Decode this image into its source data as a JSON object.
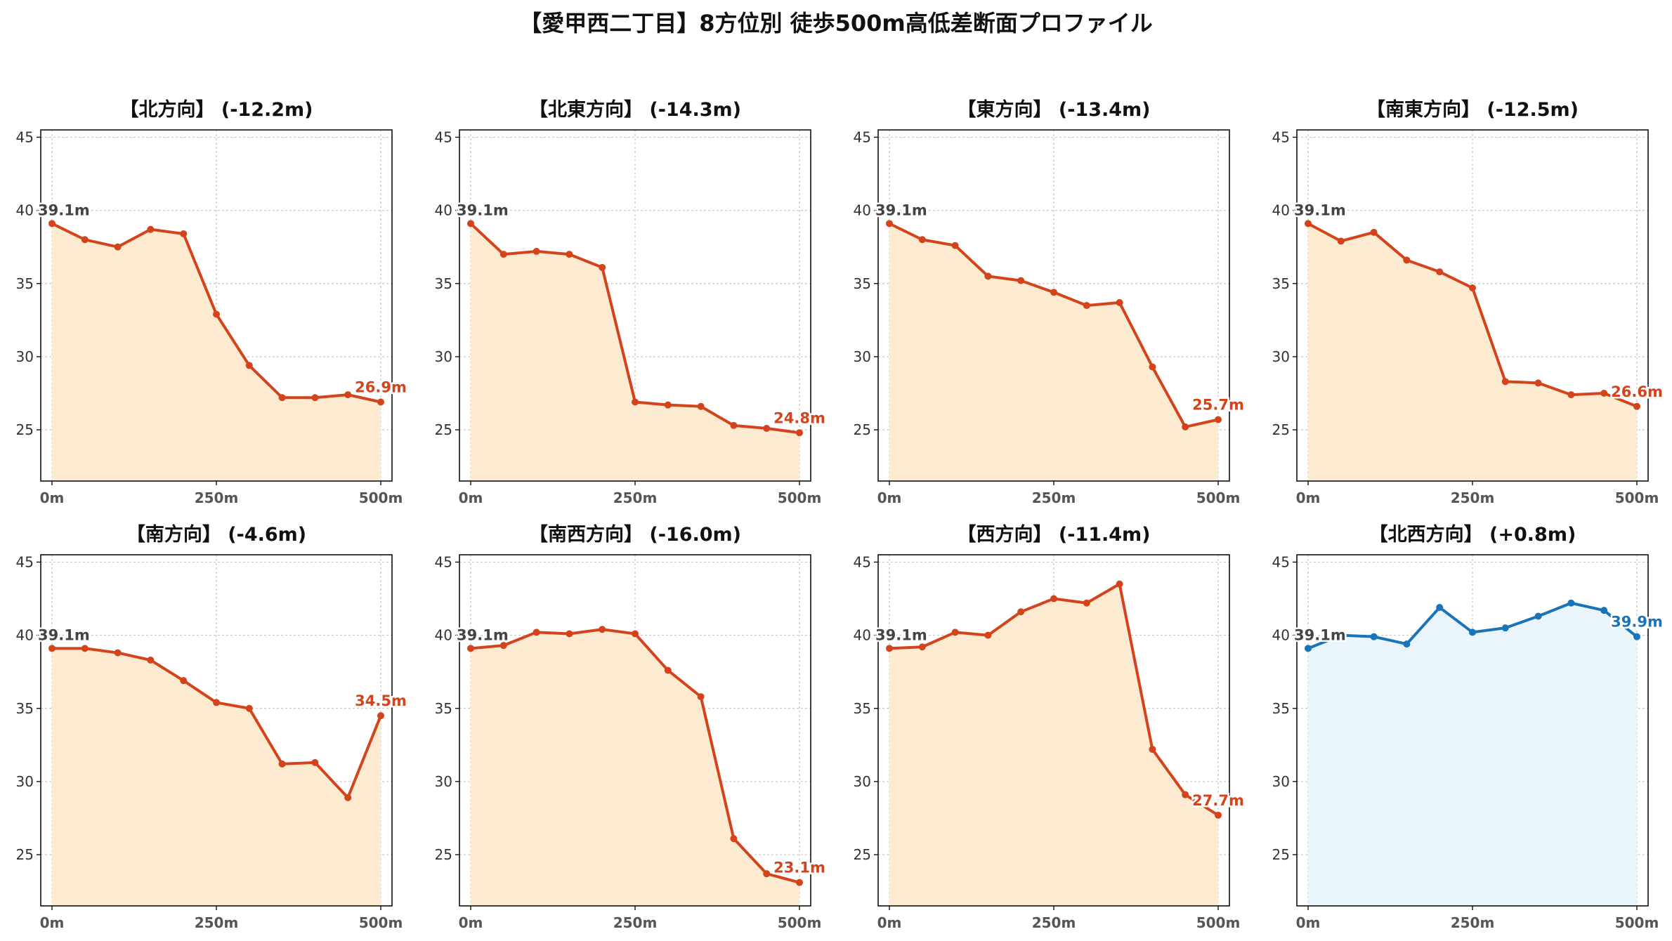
{
  "title": "【愛甲西二丁目】8方位別 徒歩500m高低差断面プロファイル",
  "colors": {
    "descent_line": "#d4441c",
    "descent_fill": "#fdebd1",
    "ascent_line": "#1a74b8",
    "ascent_fill": "#e9f5fb"
  },
  "chart_data": [
    {
      "type": "area",
      "title": "【北方向】 (-12.2m)",
      "x": [
        0,
        50,
        100,
        150,
        200,
        250,
        300,
        350,
        400,
        450,
        500
      ],
      "xticks": [
        "0m",
        "250m",
        "500m"
      ],
      "yticks": [
        "25",
        "30",
        "35",
        "40",
        "45"
      ],
      "ylim": [
        21.5,
        45.5
      ],
      "values": [
        39.1,
        38.0,
        37.5,
        38.7,
        38.4,
        32.9,
        29.4,
        27.2,
        27.2,
        27.4,
        26.9
      ],
      "start_label": "39.1m",
      "end_label": "26.9m",
      "grid": true
    },
    {
      "type": "area",
      "title": "【北東方向】 (-14.3m)",
      "x": [
        0,
        50,
        100,
        150,
        200,
        250,
        300,
        350,
        400,
        450,
        500
      ],
      "xticks": [
        "0m",
        "250m",
        "500m"
      ],
      "yticks": [
        "25",
        "30",
        "35",
        "40",
        "45"
      ],
      "ylim": [
        21.5,
        45.5
      ],
      "values": [
        39.1,
        37.0,
        37.2,
        37.0,
        36.1,
        26.9,
        26.7,
        26.6,
        25.3,
        25.1,
        24.8
      ],
      "start_label": "39.1m",
      "end_label": "24.8m",
      "grid": true
    },
    {
      "type": "area",
      "title": "【東方向】 (-13.4m)",
      "x": [
        0,
        50,
        100,
        150,
        200,
        250,
        300,
        350,
        400,
        450,
        500
      ],
      "xticks": [
        "0m",
        "250m",
        "500m"
      ],
      "yticks": [
        "25",
        "30",
        "35",
        "40",
        "45"
      ],
      "ylim": [
        21.5,
        45.5
      ],
      "values": [
        39.1,
        38.0,
        37.6,
        35.5,
        35.2,
        34.4,
        33.5,
        33.7,
        29.3,
        25.2,
        25.7
      ],
      "start_label": "39.1m",
      "end_label": "25.7m",
      "grid": true
    },
    {
      "type": "area",
      "title": "【南東方向】 (-12.5m)",
      "x": [
        0,
        50,
        100,
        150,
        200,
        250,
        300,
        350,
        400,
        450,
        500
      ],
      "xticks": [
        "0m",
        "250m",
        "500m"
      ],
      "yticks": [
        "25",
        "30",
        "35",
        "40",
        "45"
      ],
      "ylim": [
        21.5,
        45.5
      ],
      "values": [
        39.1,
        37.9,
        38.5,
        36.6,
        35.8,
        34.7,
        28.3,
        28.2,
        27.4,
        27.5,
        26.6
      ],
      "start_label": "39.1m",
      "end_label": "26.6m",
      "grid": true
    },
    {
      "type": "area",
      "title": "【南方向】 (-4.6m)",
      "x": [
        0,
        50,
        100,
        150,
        200,
        250,
        300,
        350,
        400,
        450,
        500
      ],
      "xticks": [
        "0m",
        "250m",
        "500m"
      ],
      "yticks": [
        "25",
        "30",
        "35",
        "40",
        "45"
      ],
      "ylim": [
        21.5,
        45.5
      ],
      "values": [
        39.1,
        39.1,
        38.8,
        38.3,
        36.9,
        35.4,
        35.0,
        31.2,
        31.3,
        28.9,
        34.5
      ],
      "start_label": "39.1m",
      "end_label": "34.5m",
      "grid": true
    },
    {
      "type": "area",
      "title": "【南西方向】 (-16.0m)",
      "x": [
        0,
        50,
        100,
        150,
        200,
        250,
        300,
        350,
        400,
        450,
        500
      ],
      "xticks": [
        "0m",
        "250m",
        "500m"
      ],
      "yticks": [
        "25",
        "30",
        "35",
        "40",
        "45"
      ],
      "ylim": [
        21.5,
        45.5
      ],
      "values": [
        39.1,
        39.3,
        40.2,
        40.1,
        40.4,
        40.1,
        37.6,
        35.8,
        26.1,
        23.7,
        23.1
      ],
      "start_label": "39.1m",
      "end_label": "23.1m",
      "grid": true
    },
    {
      "type": "area",
      "title": "【西方向】 (-11.4m)",
      "x": [
        0,
        50,
        100,
        150,
        200,
        250,
        300,
        350,
        400,
        450,
        500
      ],
      "xticks": [
        "0m",
        "250m",
        "500m"
      ],
      "yticks": [
        "25",
        "30",
        "35",
        "40",
        "45"
      ],
      "ylim": [
        21.5,
        45.5
      ],
      "values": [
        39.1,
        39.2,
        40.2,
        40.0,
        41.6,
        42.5,
        42.2,
        43.5,
        32.2,
        29.1,
        27.7
      ],
      "start_label": "39.1m",
      "end_label": "27.7m",
      "grid": true
    },
    {
      "type": "area",
      "title": "【北西方向】 (+0.8m)",
      "x": [
        0,
        50,
        100,
        150,
        200,
        250,
        300,
        350,
        400,
        450,
        500
      ],
      "xticks": [
        "0m",
        "250m",
        "500m"
      ],
      "yticks": [
        "25",
        "30",
        "35",
        "40",
        "45"
      ],
      "ylim": [
        21.5,
        45.5
      ],
      "values": [
        39.1,
        40.0,
        39.9,
        39.4,
        41.9,
        40.2,
        40.5,
        41.3,
        42.2,
        41.7,
        39.9
      ],
      "start_label": "39.1m",
      "end_label": "39.9m",
      "grid": true
    }
  ]
}
